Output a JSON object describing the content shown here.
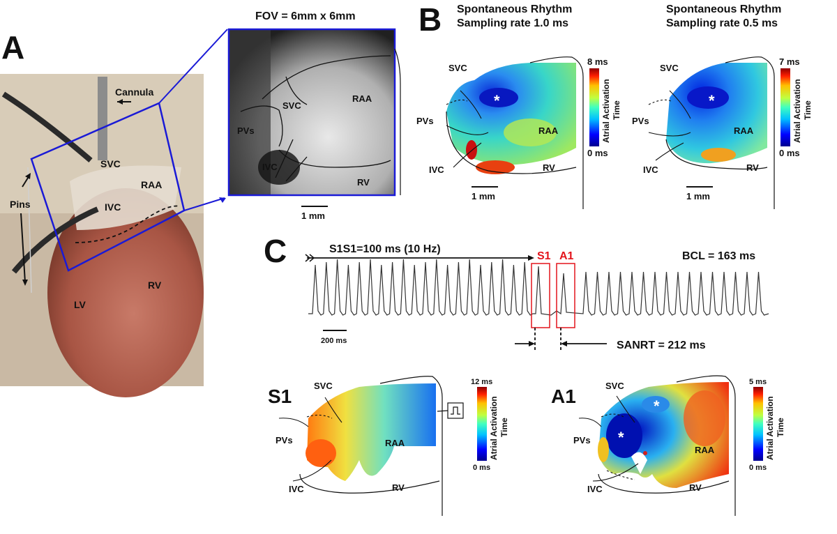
{
  "panels": {
    "a": "A",
    "b": "B",
    "c": "C"
  },
  "panel_a": {
    "labels": {
      "cannula": "Cannula",
      "svc": "SVC",
      "raa": "RAA",
      "ivc": "IVC",
      "pins": "Pins",
      "rv": "RV",
      "lv": "LV"
    }
  },
  "fov": {
    "title": "FOV = 6mm x 6mm",
    "labels": {
      "svc": "SVC",
      "raa": "RAA",
      "pvs": "PVs",
      "ivc": "IVC",
      "rv": "RV"
    },
    "scale": "1 mm"
  },
  "map_b1": {
    "title1": "Spontaneous Rhythm",
    "title2": "Sampling rate 1.0 ms",
    "labels": {
      "svc": "SVC",
      "pvs": "PVs",
      "raa": "RAA",
      "ivc": "IVC",
      "rv": "RV",
      "star": "*"
    },
    "cbar_max": "8 ms",
    "cbar_min": "0 ms",
    "cbar_label1": "Atrial Activation",
    "cbar_label2": "Time",
    "scale": "1 mm"
  },
  "map_b2": {
    "title1": "Spontaneous Rhythm",
    "title2": "Sampling rate 0.5 ms",
    "labels": {
      "svc": "SVC",
      "pvs": "PVs",
      "raa": "RAA",
      "ivc": "IVC",
      "rv": "RV",
      "star": "*"
    },
    "cbar_max": "7 ms",
    "cbar_min": "0 ms",
    "cbar_label1": "Atrial Activation",
    "cbar_label2": "Time",
    "scale": "1 mm"
  },
  "trace": {
    "pacing": "S1S1=100 ms (10 Hz)",
    "s1": "S1",
    "a1": "A1",
    "bcl": "BCL = 163 ms",
    "scale": "200 ms",
    "sanrt": "SANRT = 212 ms"
  },
  "map_s1": {
    "panel": "S1",
    "labels": {
      "svc": "SVC",
      "pvs": "PVs",
      "raa": "RAA",
      "ivc": "IVC",
      "rv": "RV"
    },
    "cbar_max": "12 ms",
    "cbar_min": "0 ms",
    "cbar_label1": "Atrial Activation",
    "cbar_label2": "Time"
  },
  "map_a1": {
    "panel": "A1",
    "labels": {
      "svc": "SVC",
      "pvs": "PVs",
      "raa": "RAA",
      "ivc": "IVC",
      "rv": "RV",
      "star": "*"
    },
    "cbar_max": "5 ms",
    "cbar_min": "0 ms",
    "cbar_label1": "Atrial Activation",
    "cbar_label2": "Time"
  },
  "colors": {
    "box_blue": "#1a1ad6",
    "marker_red": "#e3141b"
  }
}
